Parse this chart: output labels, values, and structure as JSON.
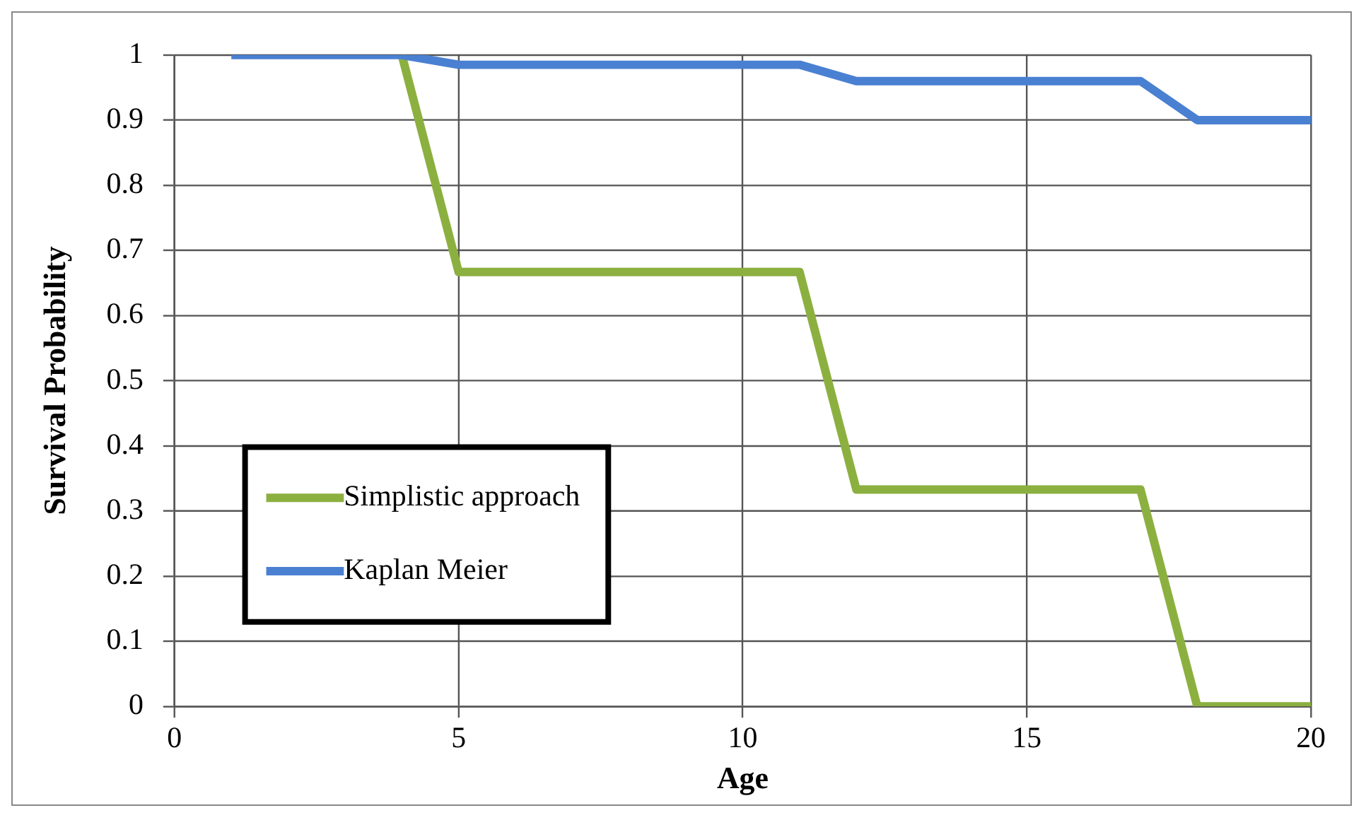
{
  "chart_data": {
    "type": "line",
    "xlabel": "Age",
    "ylabel": "Survival Probability",
    "x": [
      1,
      2,
      3,
      4,
      5,
      6,
      7,
      8,
      9,
      10,
      11,
      12,
      13,
      14,
      15,
      16,
      17,
      18,
      19,
      20
    ],
    "series": [
      {
        "name": "Simplistic approach",
        "color": "#8cb040",
        "values": [
          null,
          null,
          null,
          1,
          0.667,
          0.667,
          0.667,
          0.667,
          0.667,
          0.667,
          0.667,
          0.333,
          0.333,
          0.333,
          0.333,
          0.333,
          0.333,
          0,
          0,
          0
        ]
      },
      {
        "name": "Kaplan Meier",
        "color": "#4a80d2",
        "values": [
          1,
          1,
          1,
          1,
          0.985,
          0.985,
          0.985,
          0.985,
          0.985,
          0.985,
          0.985,
          0.96,
          0.96,
          0.96,
          0.96,
          0.96,
          0.96,
          0.9,
          0.9,
          0.9
        ]
      }
    ],
    "xlim": [
      0,
      20
    ],
    "xticks": [
      0,
      5,
      10,
      15,
      20
    ],
    "ylim": [
      0,
      1
    ],
    "yticks": [
      0,
      0.1,
      0.2,
      0.3,
      0.4,
      0.5,
      0.6,
      0.7,
      0.8,
      0.9,
      1
    ],
    "grid": true,
    "legend": "bottom left",
    "marker": "none",
    "line_style": "solid"
  }
}
